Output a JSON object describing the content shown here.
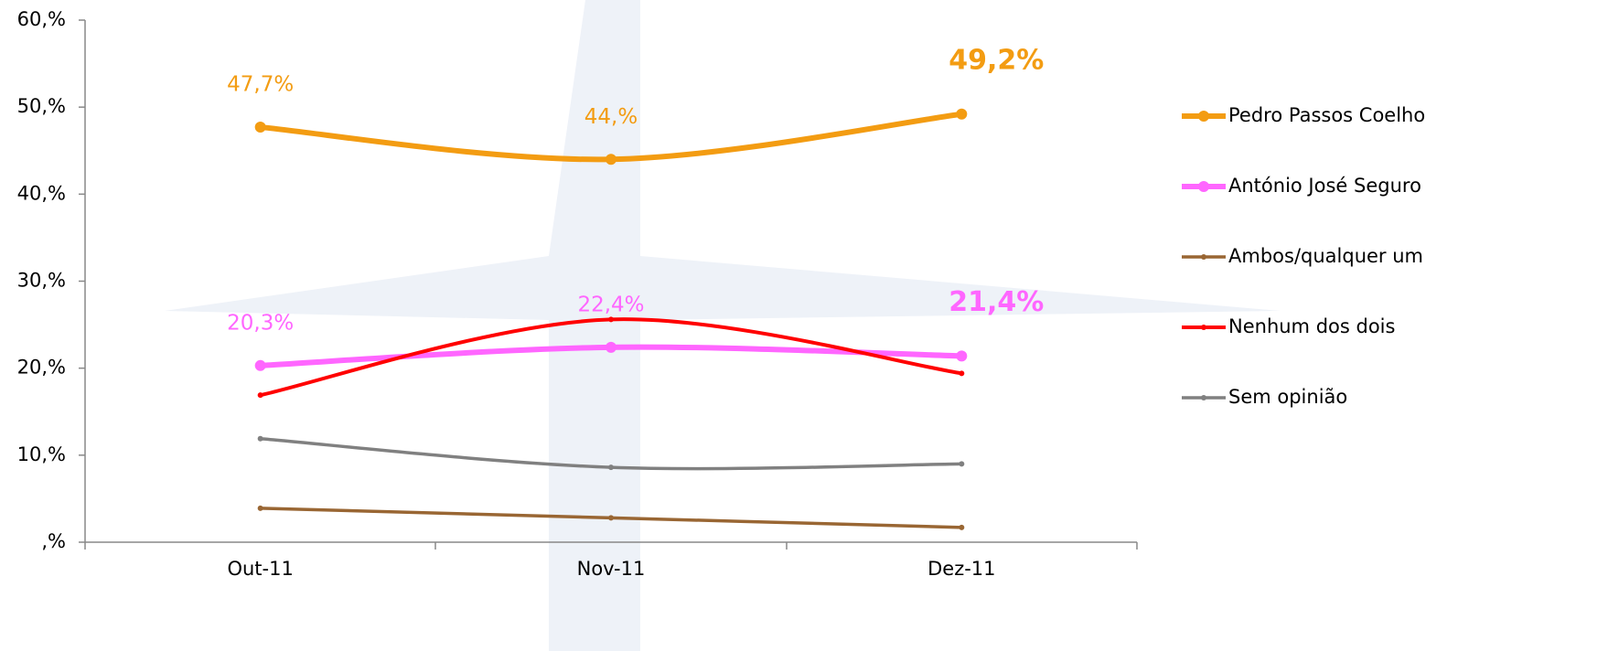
{
  "chart_data": {
    "type": "line",
    "categories": [
      "Out-11",
      "Nov-11",
      "Dez-11"
    ],
    "series": [
      {
        "name": "Pedro Passos Coelho",
        "color": "#f39c12",
        "values": [
          47.7,
          44.0,
          49.2
        ],
        "value_labels": [
          "47,7%",
          "44,%",
          "49,2%"
        ]
      },
      {
        "name": "António José Seguro",
        "color": "#ff66ff",
        "values": [
          20.3,
          22.4,
          21.4
        ],
        "value_labels": [
          "20,3%",
          "22,4%",
          "21,4%"
        ]
      },
      {
        "name": "Ambos/qualquer um",
        "color": "#996633",
        "values": [
          3.9,
          2.8,
          1.7
        ]
      },
      {
        "name": "Nenhum dos dois",
        "color": "#ff0000",
        "values": [
          16.9,
          25.6,
          19.4
        ]
      },
      {
        "name": "Sem opinião",
        "color": "#808080",
        "values": [
          11.9,
          8.6,
          9.0
        ]
      }
    ],
    "ylim": [
      0,
      60
    ],
    "yticks": [
      {
        "value": 0,
        "label": ",%"
      },
      {
        "value": 10,
        "label": "10,%"
      },
      {
        "value": 20,
        "label": "20,%"
      },
      {
        "value": 30,
        "label": "30,%"
      },
      {
        "value": 40,
        "label": "40,%"
      },
      {
        "value": 50,
        "label": "50,%"
      },
      {
        "value": 60,
        "label": "60,%"
      }
    ],
    "grid": false,
    "legend": "right"
  }
}
